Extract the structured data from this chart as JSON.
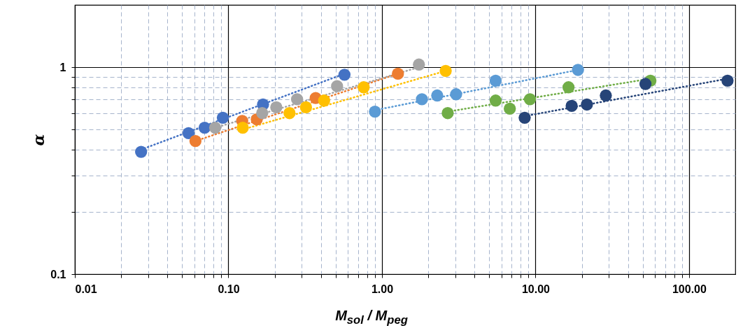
{
  "chart_data": {
    "type": "scatter",
    "xlabel": "M$_{sol}$ / M$_{peg}$",
    "ylabel": "α",
    "log": "xy",
    "grid": true,
    "marker": "circle",
    "xlim": [
      0.01,
      200
    ],
    "ylim": [
      0.1,
      2
    ],
    "xticks": [
      {
        "value": 0.01,
        "label": "0.01"
      },
      {
        "value": 0.02,
        "label": null
      },
      {
        "value": 0.03,
        "label": null
      },
      {
        "value": 0.04,
        "label": null
      },
      {
        "value": 0.05,
        "label": null
      },
      {
        "value": 0.06,
        "label": null
      },
      {
        "value": 0.07,
        "label": null
      },
      {
        "value": 0.08,
        "label": null
      },
      {
        "value": 0.09,
        "label": null
      },
      {
        "value": 0.1,
        "label": "0.10"
      },
      {
        "value": 0.2,
        "label": null
      },
      {
        "value": 0.3,
        "label": null
      },
      {
        "value": 0.4,
        "label": null
      },
      {
        "value": 0.5,
        "label": null
      },
      {
        "value": 0.6,
        "label": null
      },
      {
        "value": 0.7,
        "label": null
      },
      {
        "value": 0.8,
        "label": null
      },
      {
        "value": 0.9,
        "label": null
      },
      {
        "value": 1,
        "label": "1.00"
      },
      {
        "value": 2,
        "label": null
      },
      {
        "value": 3,
        "label": null
      },
      {
        "value": 4,
        "label": null
      },
      {
        "value": 5,
        "label": null
      },
      {
        "value": 6,
        "label": null
      },
      {
        "value": 7,
        "label": null
      },
      {
        "value": 8,
        "label": null
      },
      {
        "value": 9,
        "label": null
      },
      {
        "value": 10,
        "label": "10.00"
      },
      {
        "value": 20,
        "label": null
      },
      {
        "value": 30,
        "label": null
      },
      {
        "value": 40,
        "label": null
      },
      {
        "value": 50,
        "label": null
      },
      {
        "value": 60,
        "label": null
      },
      {
        "value": 70,
        "label": null
      },
      {
        "value": 80,
        "label": null
      },
      {
        "value": 90,
        "label": null
      },
      {
        "value": 100,
        "label": "100.00"
      }
    ],
    "yticks": [
      0.1,
      {
        "value": 0.2,
        "label": null
      },
      {
        "value": 0.3,
        "label": null
      },
      {
        "value": 0.4,
        "label": null
      },
      {
        "value": 0.5,
        "label": null
      },
      {
        "value": 0.6,
        "label": null
      },
      {
        "value": 0.7,
        "label": null
      },
      {
        "value": 0.8,
        "label": null
      },
      {
        "value": 0.9,
        "label": null
      },
      1
    ],
    "series": [
      {
        "type": "line",
        "marker": "none",
        "line_style": "dotted",
        "color": "#4472c4",
        "x": [
          0.027,
          0.57
        ],
        "values": [
          0.4,
          0.93
        ]
      },
      {
        "type": "line",
        "marker": "none",
        "line_style": "dotted",
        "color": "#ed7d31",
        "x": [
          0.061,
          1.27
        ],
        "values": [
          0.44,
          0.93
        ]
      },
      {
        "type": "line",
        "marker": "none",
        "line_style": "dotted",
        "color": "#a5a5a5",
        "x": [
          0.082,
          1.74
        ],
        "values": [
          0.51,
          1.0
        ]
      },
      {
        "type": "line",
        "marker": "none",
        "line_style": "dotted",
        "color": "#ffc000",
        "x": [
          0.124,
          2.6
        ],
        "values": [
          0.5,
          0.96
        ]
      },
      {
        "type": "line",
        "marker": "none",
        "line_style": "dotted",
        "color": "#5b9bd5",
        "x": [
          0.9,
          18.9
        ],
        "values": [
          0.62,
          0.97
        ]
      },
      {
        "type": "line",
        "marker": "none",
        "line_style": "dotted",
        "color": "#70ad47",
        "x": [
          2.68,
          56
        ],
        "values": [
          0.61,
          0.88
        ]
      },
      {
        "type": "line",
        "marker": "none",
        "line_style": "dotted",
        "color": "#264478",
        "x": [
          8.5,
          178
        ],
        "values": [
          0.58,
          0.88
        ]
      },
      {
        "color": "#4472c4",
        "x": [
          0.027,
          0.055,
          0.07,
          0.092,
          0.168,
          0.57
        ],
        "values": [
          0.39,
          0.48,
          0.51,
          0.57,
          0.66,
          0.92
        ]
      },
      {
        "color": "#ed7d31",
        "x": [
          0.061,
          0.123,
          0.153,
          0.37,
          1.27
        ],
        "values": [
          0.44,
          0.55,
          0.56,
          0.71,
          0.93
        ]
      },
      {
        "color": "#a5a5a5",
        "x": [
          0.082,
          0.166,
          0.205,
          0.28,
          0.51,
          1.74
        ],
        "values": [
          0.51,
          0.6,
          0.64,
          0.7,
          0.81,
          1.03
        ]
      },
      {
        "color": "#ffc000",
        "x": [
          0.124,
          0.25,
          0.32,
          0.42,
          0.76,
          2.6
        ],
        "values": [
          0.51,
          0.6,
          0.64,
          0.69,
          0.8,
          0.96
        ]
      },
      {
        "color": "#5b9bd5",
        "x": [
          0.9,
          1.82,
          2.29,
          3.04,
          5.5,
          18.9
        ],
        "values": [
          0.61,
          0.7,
          0.73,
          0.74,
          0.86,
          0.97
        ]
      },
      {
        "color": "#70ad47",
        "x": [
          2.68,
          5.5,
          6.8,
          9.2,
          16.4,
          56
        ],
        "values": [
          0.6,
          0.69,
          0.63,
          0.7,
          0.8,
          0.86
        ]
      },
      {
        "color": "#264478",
        "x": [
          8.5,
          17.2,
          21.6,
          28.7,
          52,
          178
        ],
        "values": [
          0.57,
          0.65,
          0.66,
          0.73,
          0.83,
          0.86
        ]
      }
    ]
  }
}
